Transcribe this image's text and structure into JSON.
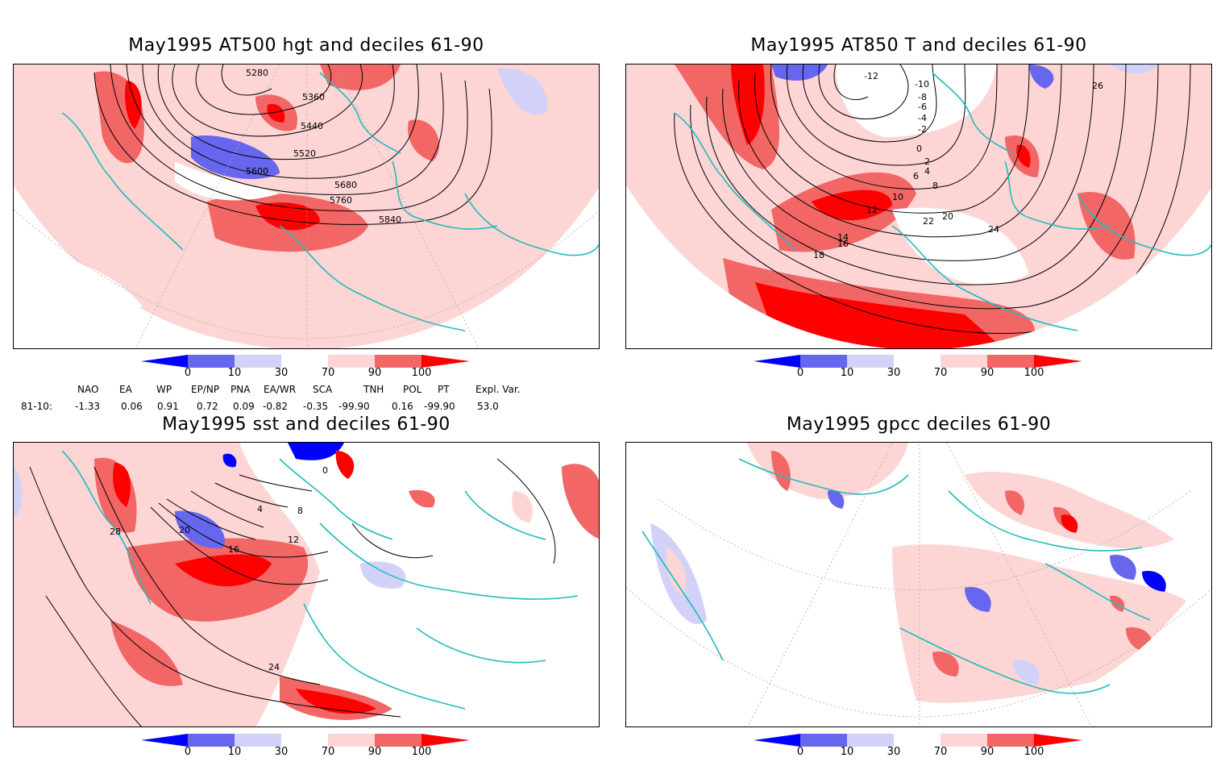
{
  "panels": [
    {
      "title": "May1995 AT500 hgt and deciles 61-90",
      "contour_labels": [
        "5280",
        "5360",
        "5440",
        "5520",
        "5600",
        "5680",
        "5760",
        "5840"
      ]
    },
    {
      "title": "May1995 AT850 T and deciles 61-90",
      "contour_labels": [
        "-12",
        "-10",
        "-8",
        "-6",
        "-4",
        "-2",
        "0",
        "2",
        "4",
        "6",
        "8",
        "10",
        "12",
        "14",
        "16",
        "18",
        "20",
        "22",
        "24",
        "26"
      ]
    },
    {
      "title": "May1995 sst and deciles 61-90",
      "contour_labels": [
        "0",
        "4",
        "8",
        "12",
        "16",
        "20",
        "24",
        "28"
      ]
    },
    {
      "title": "May1995 gpcc deciles 61-90",
      "contour_labels": []
    }
  ],
  "colorbar": {
    "ticks": [
      "0",
      "10",
      "30",
      "70",
      "90",
      "100"
    ],
    "colors": [
      "#0000ff",
      "#6666ee",
      "#d2d2f8",
      "#ffffff",
      "#fdd5d5",
      "#f26666",
      "#ff0000"
    ]
  },
  "indices": {
    "headers": [
      "NAO",
      "EA",
      "WP",
      "EP/NP",
      "PNA",
      "EA/WR",
      "SCA",
      "TNH",
      "POL",
      "PT",
      "Expl. Var."
    ],
    "row_label": "81-10:",
    "values": [
      "-1.33",
      "0.06",
      "0.91",
      "0.72",
      "0.09",
      "-0.82",
      "-0.35",
      "-99.90",
      "0.16",
      "-99.90",
      "53.0"
    ]
  },
  "colors": {
    "coast": "#22bbbb",
    "grid": "#aaaaaa"
  }
}
